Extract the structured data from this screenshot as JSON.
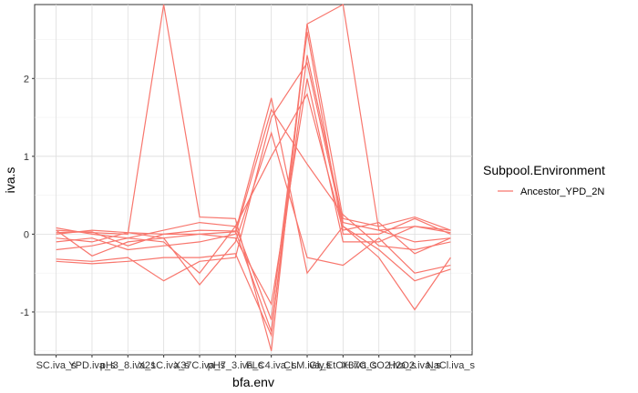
{
  "chart_data": {
    "type": "line",
    "title": "",
    "xlabel": "bfa.env",
    "ylabel": "iva.s",
    "ylim": [
      -1.55,
      2.95
    ],
    "y_ticks": [
      -1,
      0,
      1,
      2
    ],
    "grid": true,
    "categories": [
      "SC.iva_s",
      "YPD.iva_s",
      "pH3_8.iva_s",
      "X21C.iva_s",
      "X37C.iva_s",
      "pH7_3.iva_s",
      "FLC4.iva_s",
      "CLM.iva_s",
      "Gly.EtOH.iva_s",
      "X37C.CO2.iva_s",
      "H2O2.iva_s",
      "NaCl.iva_s"
    ],
    "legend": {
      "title": "Subpool.Environment",
      "position": "right",
      "entries": [
        {
          "label": "Ancestor_YPD_2N",
          "color": "#F8766D"
        }
      ]
    },
    "series_color": "#F8766D",
    "series": [
      {
        "name": "Ancestor_YPD_2N",
        "values": [
          0.05,
          0.02,
          0.0,
          2.95,
          0.22,
          0.2,
          -1.5,
          2.7,
          2.95,
          0.05,
          -0.1,
          -0.05
        ]
      },
      {
        "name": "Ancestor_YPD_2N",
        "values": [
          0.0,
          0.05,
          0.02,
          0.0,
          0.0,
          0.03,
          1.75,
          -0.5,
          0.1,
          -0.3,
          -0.97,
          -0.3
        ]
      },
      {
        "name": "Ancestor_YPD_2N",
        "values": [
          -0.35,
          -0.38,
          -0.35,
          -0.3,
          -0.3,
          -0.25,
          -1.3,
          2.7,
          0.2,
          0.1,
          0.22,
          0.05
        ]
      },
      {
        "name": "Ancestor_YPD_2N",
        "values": [
          -0.32,
          -0.35,
          -0.3,
          -0.6,
          -0.35,
          -0.3,
          1.5,
          2.2,
          0.1,
          -0.2,
          -0.6,
          -0.45
        ]
      },
      {
        "name": "Ancestor_YPD_2N",
        "values": [
          0.08,
          0.0,
          -0.05,
          -0.1,
          -0.5,
          0.1,
          -1.1,
          2.6,
          0.0,
          0.0,
          0.2,
          0.0
        ]
      },
      {
        "name": "Ancestor_YPD_2N",
        "values": [
          -0.05,
          -0.1,
          0.02,
          -0.05,
          -0.65,
          -0.1,
          1.3,
          -0.3,
          -0.4,
          -0.05,
          -0.5,
          -0.4
        ]
      },
      {
        "name": "Ancestor_YPD_2N",
        "values": [
          0.02,
          0.03,
          -0.15,
          0.0,
          0.05,
          0.04,
          -1.25,
          2.3,
          0.15,
          0.05,
          0.1,
          0.02
        ]
      },
      {
        "name": "Ancestor_YPD_2N",
        "values": [
          -0.1,
          -0.05,
          -0.2,
          -0.15,
          -0.1,
          0.0,
          1.6,
          0.9,
          0.25,
          -0.15,
          -0.2,
          -0.1
        ]
      },
      {
        "name": "Ancestor_YPD_2N",
        "values": [
          0.05,
          -0.28,
          -0.1,
          -0.05,
          0.0,
          -0.05,
          -0.9,
          2.0,
          -0.1,
          -0.1,
          0.1,
          0.05
        ]
      },
      {
        "name": "Ancestor_YPD_2N",
        "values": [
          -0.2,
          -0.15,
          -0.05,
          0.05,
          0.15,
          0.1,
          1.0,
          1.8,
          0.05,
          0.15,
          -0.25,
          -0.05
        ]
      }
    ]
  }
}
